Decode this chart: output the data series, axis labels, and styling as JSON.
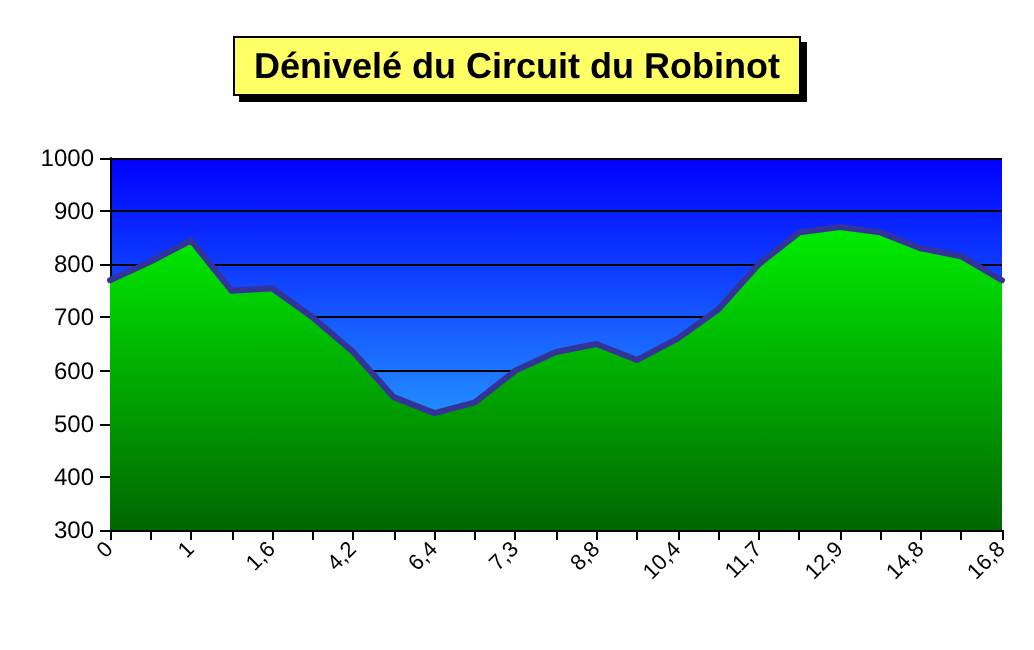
{
  "chart_data": {
    "type": "area",
    "title": "Dénivelé du Circuit du Robinot",
    "categories": [
      "0",
      null,
      "1",
      null,
      "1,6",
      null,
      "4,2",
      null,
      "6,4",
      null,
      "7,3",
      null,
      "8,8",
      null,
      "10,4",
      null,
      "11,7",
      null,
      "12,9",
      null,
      "14,8",
      null,
      "16,8"
    ],
    "series": [
      {
        "color": "#00ee00",
        "values": [
          770,
          805,
          845,
          750,
          755,
          700,
          635,
          550,
          520,
          540,
          600,
          635,
          650,
          620,
          660,
          715,
          800,
          860,
          870,
          860,
          830,
          815,
          770
        ]
      }
    ],
    "ylim": [
      300,
      1000
    ],
    "yticks": [
      300,
      400,
      500,
      600,
      700,
      800,
      900,
      1000
    ],
    "grid": "y",
    "marker": "none",
    "line_style": "solid"
  }
}
